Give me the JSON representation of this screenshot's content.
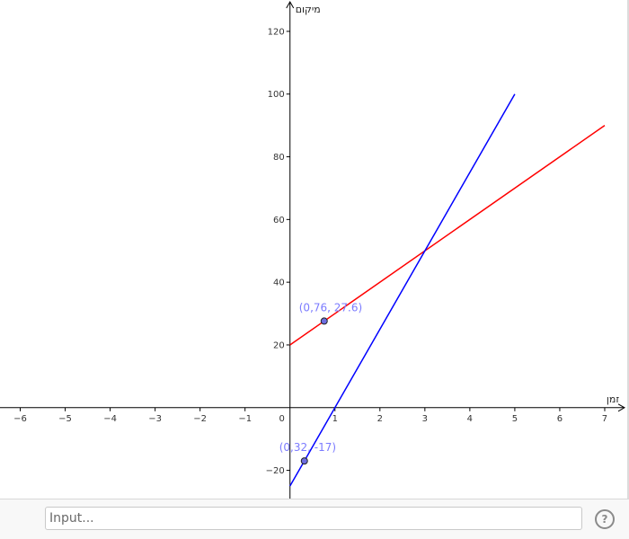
{
  "graph": {
    "x_axis_title": "זמן",
    "y_axis_title": "מיקום",
    "x_ticks": [
      -6,
      -5,
      -4,
      -3,
      -2,
      -1,
      0,
      1,
      2,
      3,
      4,
      5,
      6,
      7
    ],
    "x_tick_labels": [
      "−6",
      "−5",
      "−4",
      "−3",
      "−2",
      "−1",
      "0",
      "1",
      "2",
      "3",
      "4",
      "5",
      "6",
      "7"
    ],
    "y_ticks": [
      -20,
      20,
      40,
      60,
      80,
      100,
      120
    ],
    "y_tick_labels": [
      "−20",
      "20",
      "40",
      "60",
      "80",
      "100",
      "120"
    ],
    "x_range": [
      -6.45,
      7.5
    ],
    "y_range": [
      -29,
      130
    ],
    "colors": {
      "line_red": "#ff0000",
      "line_blue": "#0000ff",
      "point_fill": "#6d6de0",
      "point_label": "#7b7bff",
      "axis": "#000000"
    }
  },
  "chart_data": {
    "type": "line",
    "xlabel": "זמן",
    "ylabel": "מיקום",
    "series": [
      {
        "color": "#ff0000",
        "x": [
          0,
          7
        ],
        "y": [
          20,
          90
        ]
      },
      {
        "color": "#0000ff",
        "x": [
          0,
          5
        ],
        "y": [
          -25,
          100
        ]
      }
    ],
    "points": [
      {
        "x": 0.76,
        "y": 27.6,
        "label": "(0,76, 27.6)"
      },
      {
        "x": 0.32,
        "y": -17,
        "label": "(0,32, -17)"
      }
    ],
    "xlim": [
      -6.45,
      7.5
    ],
    "ylim": [
      -29,
      130
    ],
    "grid": false
  },
  "input_bar": {
    "placeholder": "Input...",
    "help_icon_label": "?",
    "help_icon": "help-circle-icon"
  }
}
